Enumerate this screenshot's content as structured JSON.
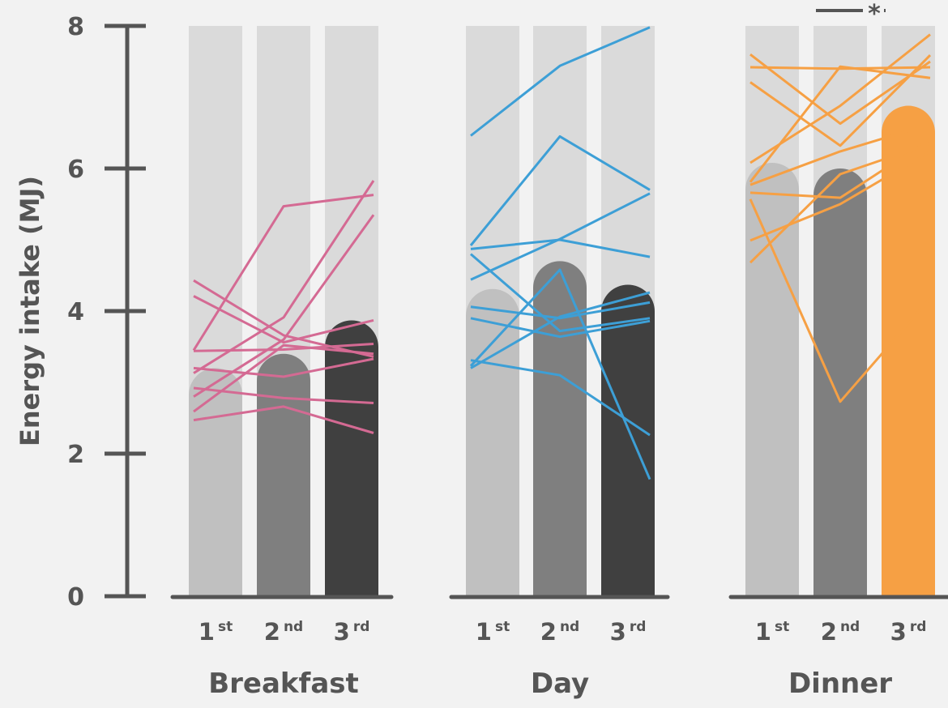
{
  "chart_data": {
    "type": "bar",
    "ylabel": "Energy intake (MJ)",
    "ylim": [
      0,
      8
    ],
    "yticks": [
      "0",
      "2",
      "4",
      "6",
      "8"
    ],
    "categories": [
      {
        "num": "1",
        "suffix": "st"
      },
      {
        "num": "2",
        "suffix": "nd"
      },
      {
        "num": "3",
        "suffix": "rd"
      }
    ],
    "colors": {
      "background_bar": "#dadada",
      "first": "#c0c0c0",
      "second": "#7f7f7f",
      "third": "#404040",
      "axis": "#555555"
    },
    "significance": {
      "panel": 2,
      "from": 1,
      "to": 2,
      "label": "*"
    },
    "panels": [
      {
        "name": "Breakfast",
        "line_color": "#d46a93",
        "means": [
          3.2,
          3.4,
          3.87
        ],
        "highlight_index": null,
        "participants": [
          [
            4.43,
            3.66,
            3.36
          ],
          [
            4.21,
            3.56,
            3.87
          ],
          [
            3.45,
            5.47,
            5.63
          ],
          [
            3.44,
            3.46,
            3.54
          ],
          [
            3.2,
            3.08,
            3.33
          ],
          [
            3.13,
            3.91,
            5.83
          ],
          [
            2.92,
            2.78,
            2.71
          ],
          [
            2.8,
            3.6,
            5.35
          ],
          [
            2.59,
            3.52,
            3.4
          ],
          [
            2.47,
            2.66,
            2.29
          ]
        ]
      },
      {
        "name": "Day",
        "line_color": "#3d9fd6",
        "means": [
          4.31,
          4.7,
          4.37
        ],
        "highlight_index": null,
        "participants": [
          [
            6.46,
            7.44,
            7.98
          ],
          [
            4.92,
            6.45,
            5.7
          ],
          [
            4.87,
            5.0,
            4.76
          ],
          [
            4.8,
            3.72,
            3.9
          ],
          [
            4.44,
            5.01,
            5.65
          ],
          [
            4.06,
            3.9,
            4.12
          ],
          [
            3.9,
            3.64,
            3.86
          ],
          [
            3.31,
            3.1,
            2.26
          ],
          [
            3.23,
            4.58,
            1.64
          ],
          [
            3.2,
            3.92,
            4.26
          ]
        ]
      },
      {
        "name": "Dinner",
        "line_color": "#f6a044",
        "means": [
          6.08,
          6.0,
          6.88
        ],
        "highlight_index": 2,
        "participants": [
          [
            7.6,
            6.63,
            7.5
          ],
          [
            7.42,
            7.4,
            7.42
          ],
          [
            7.21,
            6.32,
            7.59
          ],
          [
            6.08,
            6.88,
            7.88
          ],
          [
            5.81,
            7.43,
            7.27
          ],
          [
            5.77,
            6.24,
            6.62
          ],
          [
            5.66,
            5.59,
            6.41
          ],
          [
            5.57,
            2.73,
            4.18
          ],
          [
            4.99,
            5.5,
            6.24
          ],
          [
            4.68,
            5.92,
            6.35
          ]
        ]
      }
    ]
  }
}
